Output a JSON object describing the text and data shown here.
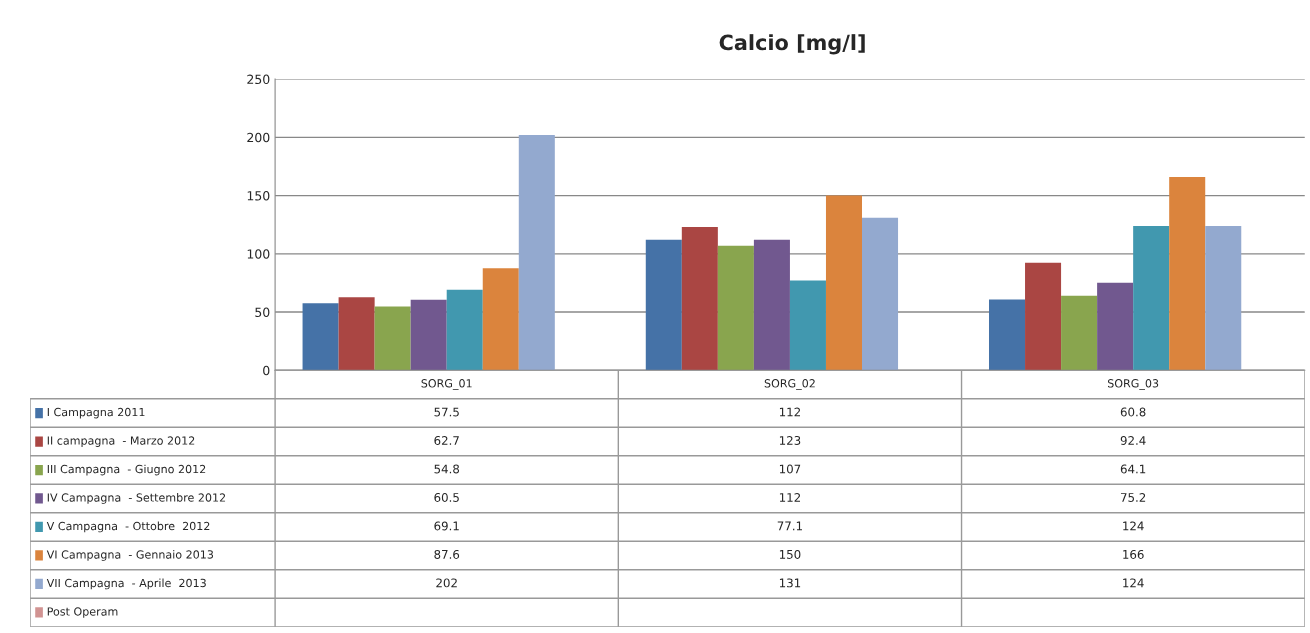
{
  "chart_data": {
    "type": "bar",
    "title": "Calcio [mg/l]",
    "categories": [
      "SORG_01",
      "SORG_02",
      "SORG_03"
    ],
    "series": [
      {
        "name": "I Campagna 2011",
        "color": "#4572a7",
        "values": [
          57.5,
          112,
          60.8
        ]
      },
      {
        "name": "II campagna  - Marzo 2012",
        "color": "#aa4643",
        "values": [
          62.7,
          123,
          92.4
        ]
      },
      {
        "name": "III Campagna  - Giugno 2012",
        "color": "#89a54e",
        "values": [
          54.8,
          107,
          64.1
        ]
      },
      {
        "name": "IV Campagna  - Settembre 2012",
        "color": "#71588f",
        "values": [
          60.5,
          112,
          75.2
        ]
      },
      {
        "name": "V Campagna  - Ottobre  2012",
        "color": "#4198af",
        "values": [
          69.1,
          77.1,
          124
        ]
      },
      {
        "name": "VI Campagna  - Gennaio 2013",
        "color": "#db843d",
        "values": [
          87.6,
          150,
          166
        ]
      },
      {
        "name": "VII Campagna  - Aprile  2013",
        "color": "#93a9cf",
        "values": [
          202,
          131,
          124
        ]
      },
      {
        "name": "Post Operam",
        "color": "#d19392",
        "values": [
          null,
          null,
          null
        ]
      }
    ],
    "ylim": [
      0,
      250
    ],
    "yticks": [
      0,
      50,
      100,
      150,
      200,
      250
    ],
    "grid": "y",
    "data_labels": true,
    "legend": "bottom"
  }
}
